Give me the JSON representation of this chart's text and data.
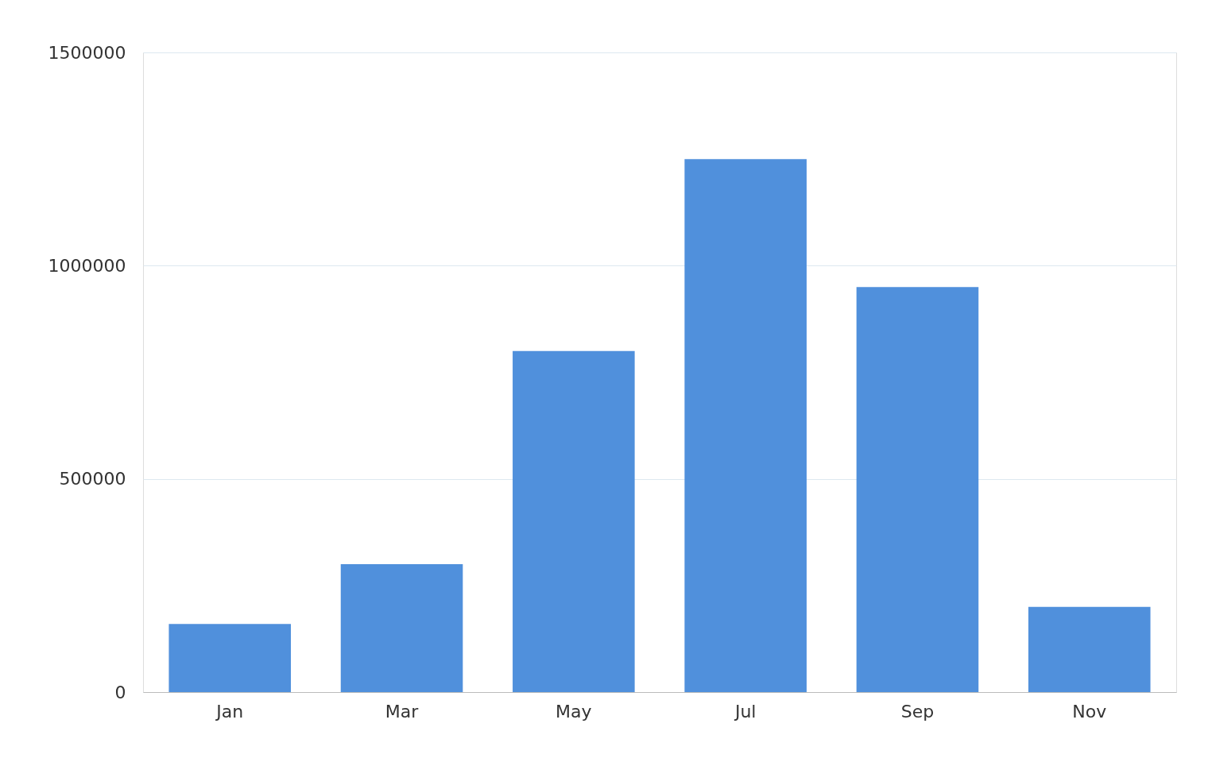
{
  "chart_data": {
    "type": "bar",
    "categories": [
      "Jan",
      "Mar",
      "May",
      "Jul",
      "Sep",
      "Nov"
    ],
    "values": [
      160000,
      300000,
      800000,
      1250000,
      950000,
      200000
    ],
    "color": "#5090dc",
    "ylim": [
      0,
      1500000
    ],
    "yticks": [
      0,
      500000,
      1000000,
      1500000
    ],
    "grid": "y"
  }
}
